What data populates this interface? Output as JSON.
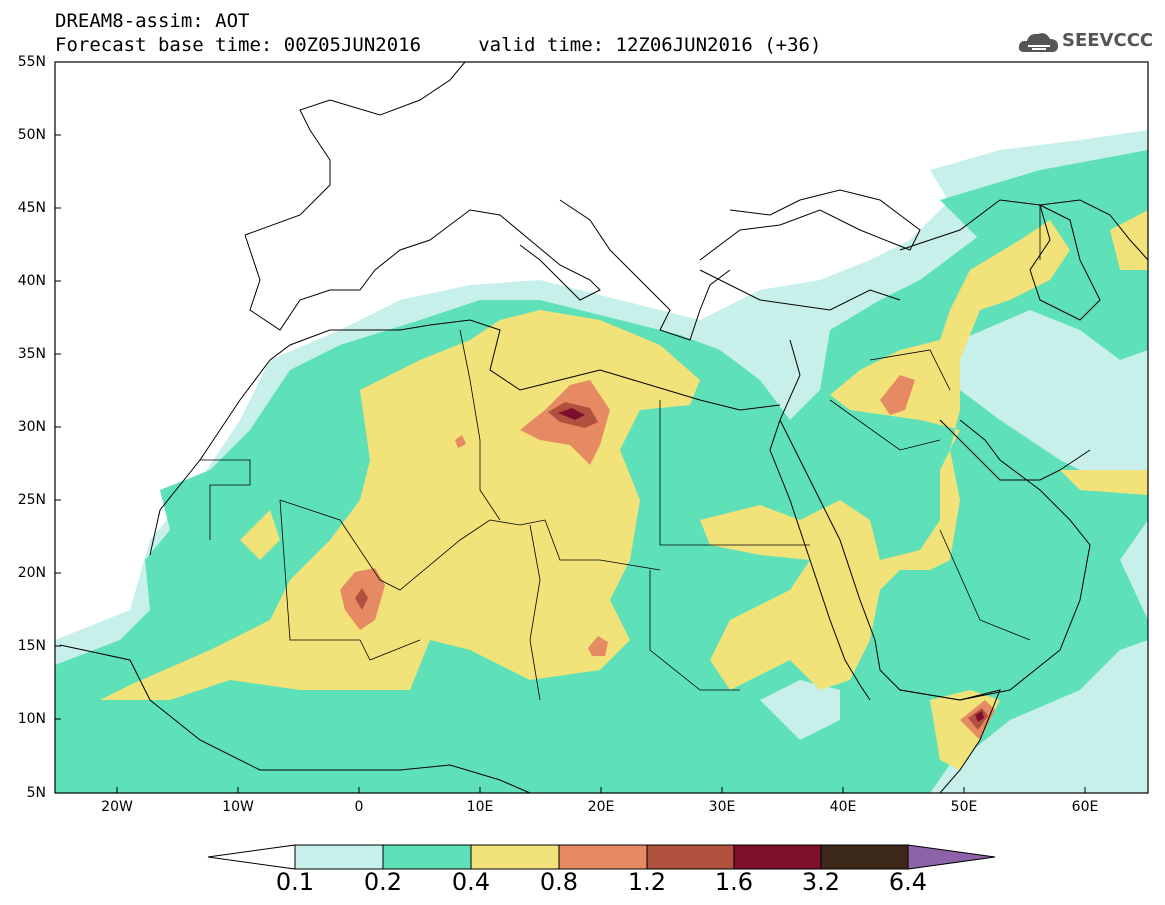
{
  "title": {
    "line1": "DREAM8-assim: AOT",
    "line2": "Forecast base time: 00Z05JUN2016     valid time: 12Z06JUN2016 (+36)"
  },
  "logo": {
    "text": "SEEVCCC",
    "icon": "cloud-icon"
  },
  "map": {
    "lon_range": [
      -25,
      65
    ],
    "lat_range": [
      5,
      55
    ],
    "lat_ticks": [
      "55N",
      "50N",
      "45N",
      "40N",
      "35N",
      "30N",
      "25N",
      "20N",
      "15N",
      "10N",
      "5N"
    ],
    "lon_ticks": [
      "20W",
      "10W",
      "0",
      "10E",
      "20E",
      "30E",
      "40E",
      "50E",
      "60E"
    ],
    "field": "AOT"
  },
  "colorbar": {
    "levels": [
      "0.1",
      "0.2",
      "0.4",
      "0.8",
      "1.2",
      "1.6",
      "3.2",
      "6.4"
    ],
    "colors": [
      "#ffffff",
      "#c8f0ea",
      "#5ee0b8",
      "#f2e27a",
      "#e58a62",
      "#b0513f",
      "#7d0f2c",
      "#3c2818",
      "#8e62a8"
    ]
  }
}
